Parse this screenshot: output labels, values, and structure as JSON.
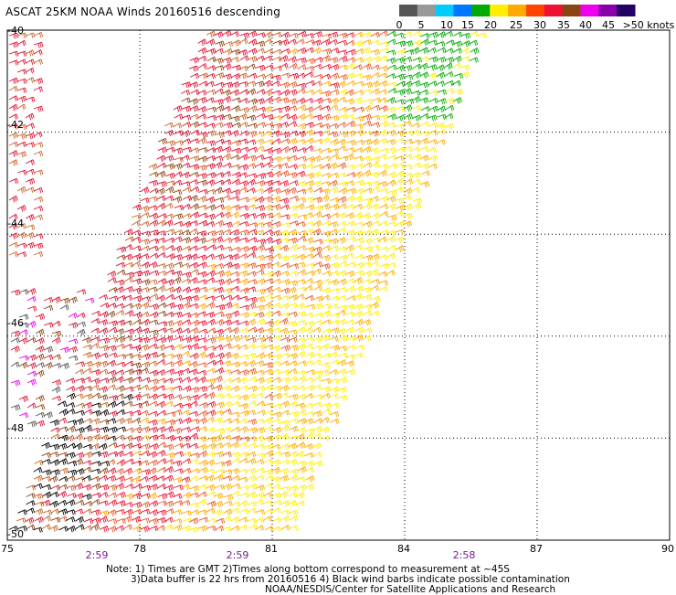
{
  "title": "ASCAT 25KM NOAA Winds 20160516 descending",
  "legend": {
    "stops": [
      {
        "label": "0",
        "color": "#555555"
      },
      {
        "label": "5",
        "color": "#999999"
      },
      {
        "label": "10",
        "color": "#00ccff"
      },
      {
        "label": "15",
        "color": "#0077ff"
      },
      {
        "label": "20",
        "color": "#00aa00"
      },
      {
        "label": "25",
        "color": "#ffee00"
      },
      {
        "label": "30",
        "color": "#ffaa00"
      },
      {
        "label": "35",
        "color": "#ff4400"
      },
      {
        "label": "40",
        "color": "#ee1133"
      },
      {
        "label": "45",
        "color": "#8b4513"
      },
      {
        "label": "",
        "color": "#ee00ee"
      },
      {
        "label": "",
        "color": "#8800aa"
      },
      {
        "label": ">50 knots",
        "color": "#220066"
      }
    ]
  },
  "axes": {
    "lat_labels": [
      "-40",
      "-42",
      "-44",
      "-46",
      "-48",
      "-50"
    ],
    "lon_labels": [
      "75",
      "78",
      "81",
      "84",
      "87",
      "90"
    ],
    "time_labels": [
      "2:59",
      "2:59",
      "2:58"
    ],
    "lat_range": [
      -50,
      -40
    ],
    "lon_range": [
      75,
      90
    ]
  },
  "notes": {
    "line1": "Note: 1) Times are GMT 2)Times along bottom correspond to measurement at ~45S",
    "line2": "3)Data buffer is 22 hrs from 20160516 4) Black wind barbs indicate possible contamination",
    "line3": "NOAA/NESDIS/Center for Satellite Applications and Research"
  }
}
